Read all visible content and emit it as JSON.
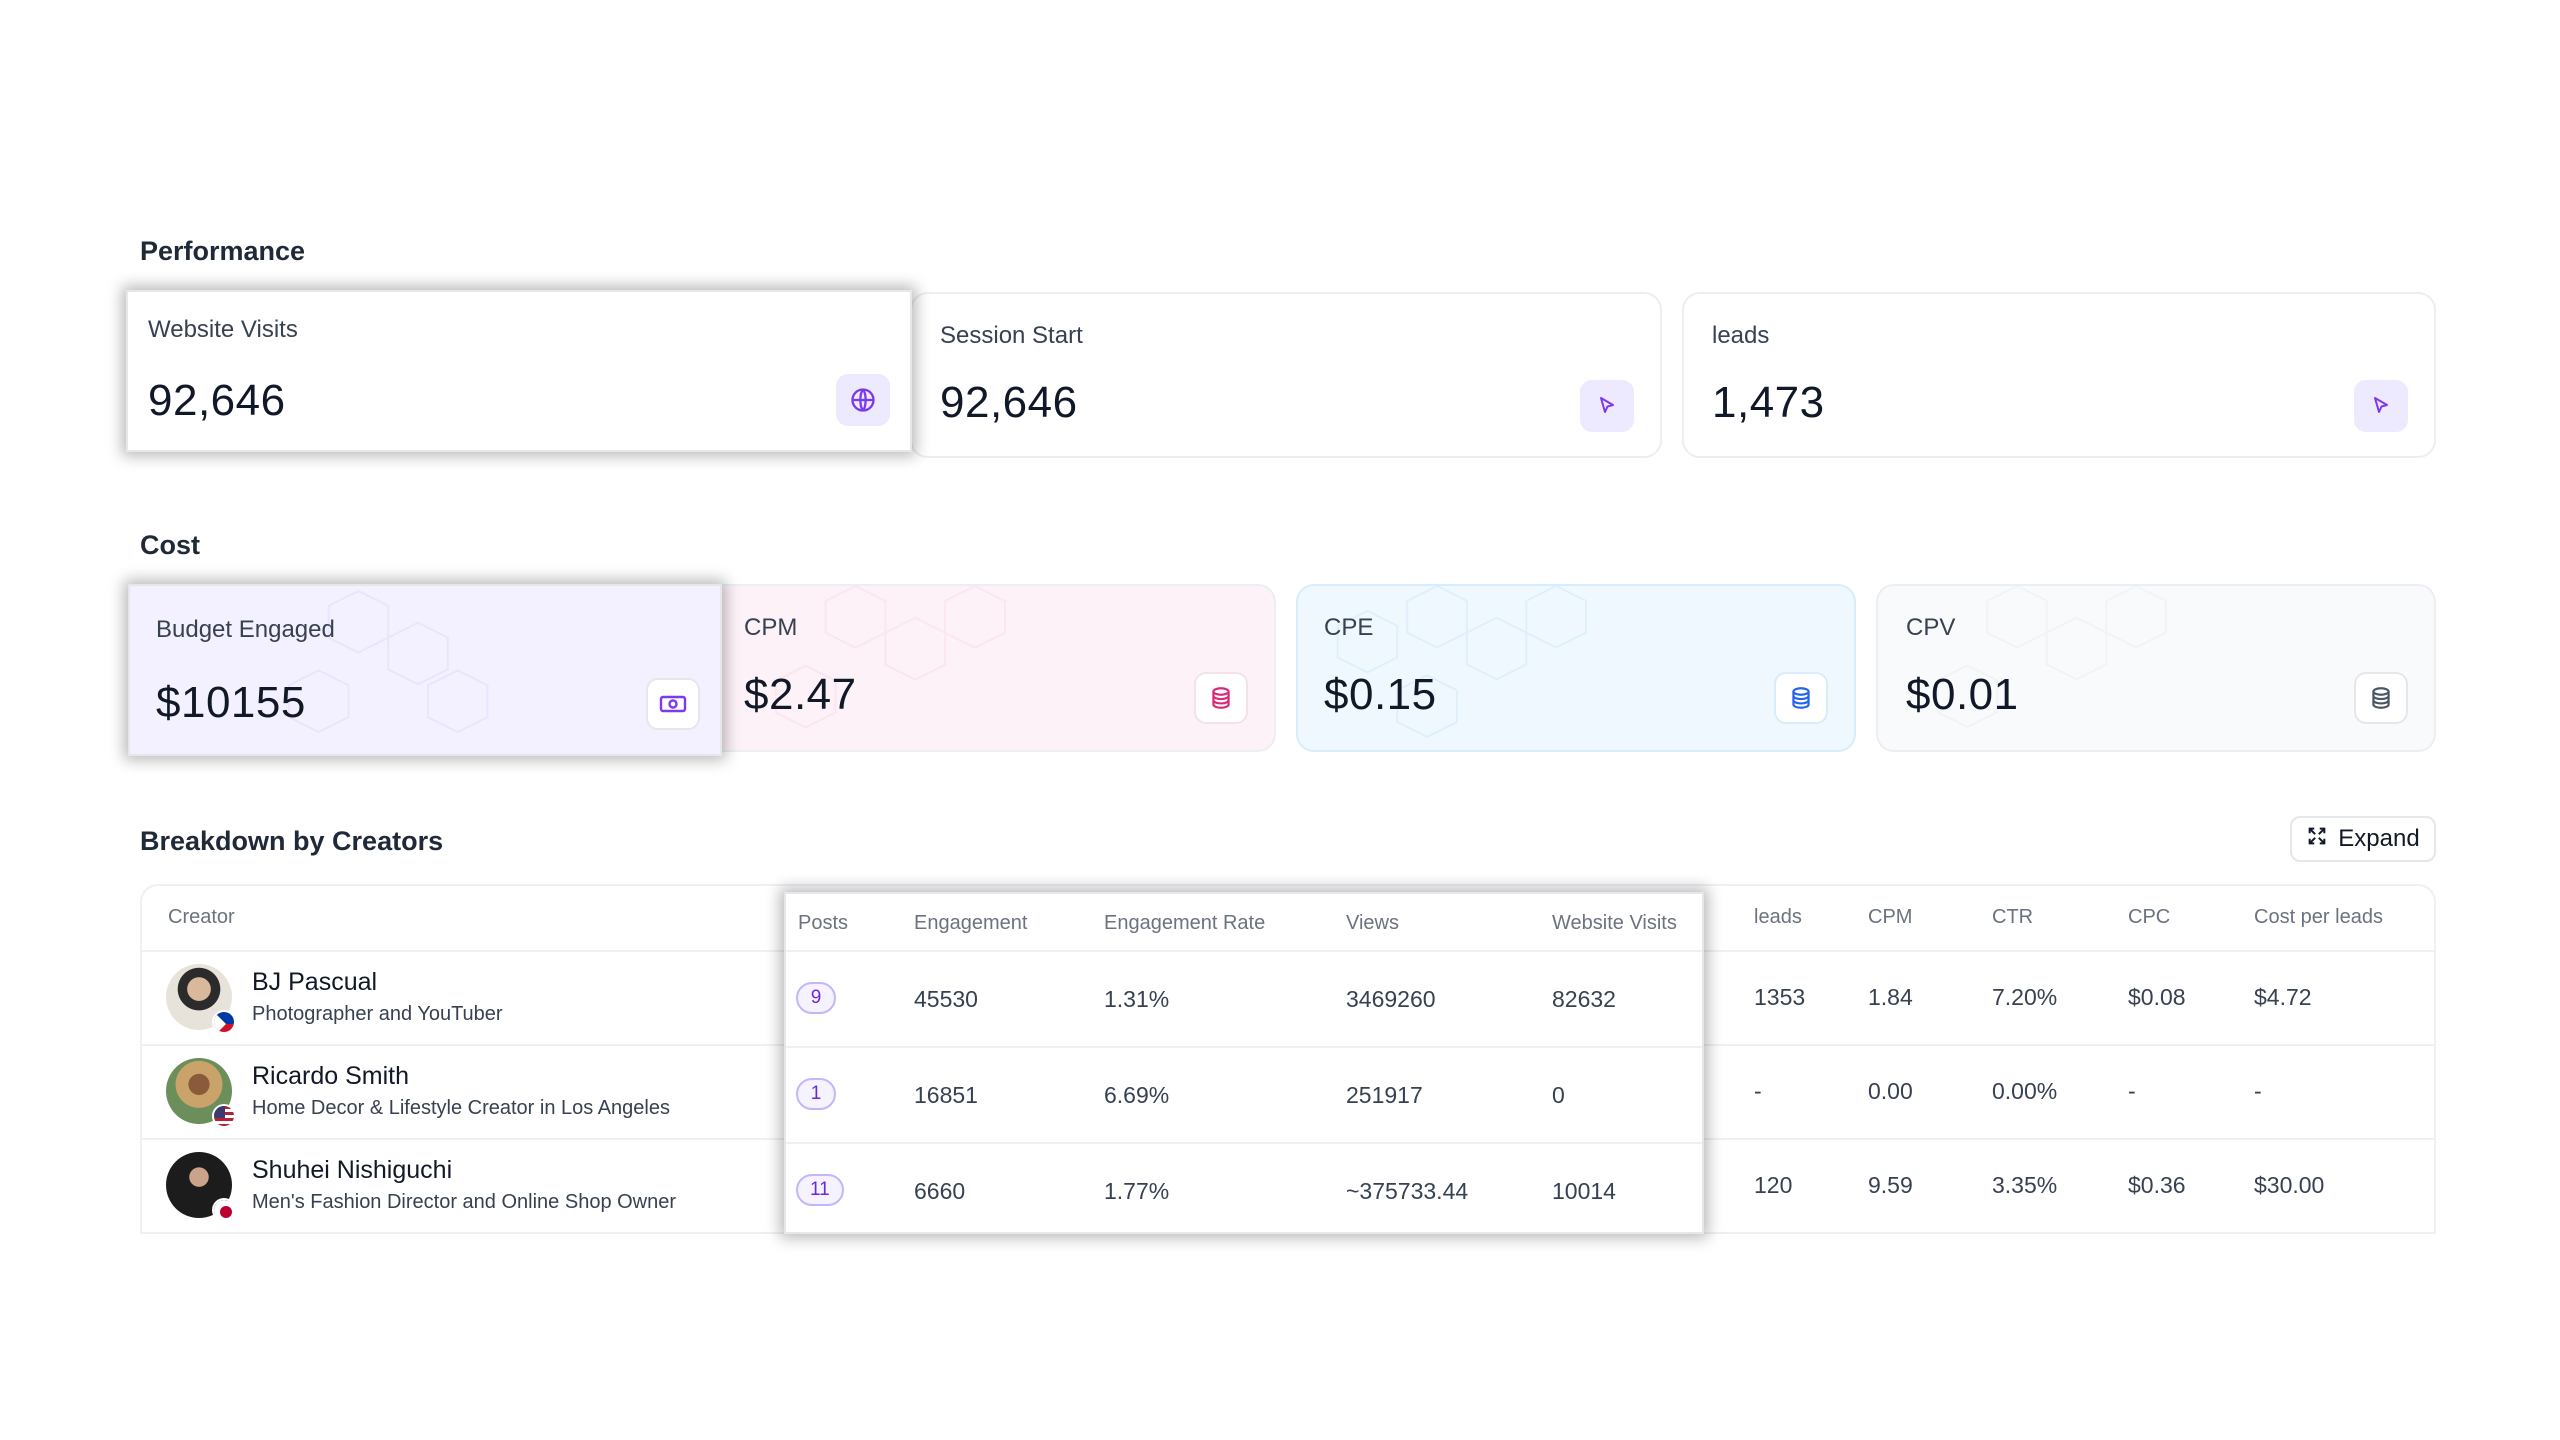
{
  "sections": {
    "performance": "Performance",
    "cost": "Cost",
    "breakdown": "Breakdown by Creators"
  },
  "performance": [
    {
      "label": "Website Visits",
      "value": "92,646",
      "icon": "globe-icon"
    },
    {
      "label": "Session Start",
      "value": "92,646",
      "icon": "cursor-icon"
    },
    {
      "label": "leads",
      "value": "1,473",
      "icon": "cursor-icon"
    }
  ],
  "cost": [
    {
      "label": "Budget Engaged",
      "value": "$10155",
      "icon": "cash-icon",
      "bg": "#f3f0ff"
    },
    {
      "label": "CPM",
      "value": "$2.47",
      "icon": "coins-icon",
      "bg": "#fdf2f8"
    },
    {
      "label": "CPE",
      "value": "$0.15",
      "icon": "coins-icon",
      "bg": "#eff8ff"
    },
    {
      "label": "CPV",
      "value": "$0.01",
      "icon": "coins-icon",
      "bg": "#f9fafb"
    }
  ],
  "table": {
    "expand_label": "Expand",
    "headers": [
      "Creator",
      "Posts",
      "Engagement",
      "Engagement Rate",
      "Views",
      "Website Visits",
      "leads",
      "CPM",
      "CTR",
      "CPC",
      "Cost per leads"
    ],
    "rows": [
      {
        "name": "BJ Pascual",
        "desc": "Photographer and YouTuber",
        "flag": "philippines-flag-icon",
        "posts": "9",
        "engagement": "45530",
        "engagement_rate": "1.31%",
        "views": "3469260",
        "website_visits": "82632",
        "leads": "1353",
        "cpm": "1.84",
        "ctr": "7.20%",
        "cpc": "$0.08",
        "cost_per_leads": "$4.72"
      },
      {
        "name": "Ricardo Smith",
        "desc": "Home Decor & Lifestyle Creator in Los Angeles",
        "flag": "usa-flag-icon",
        "posts": "1",
        "engagement": "16851",
        "engagement_rate": "6.69%",
        "views": "251917",
        "website_visits": "0",
        "leads": "-",
        "cpm": "0.00",
        "ctr": "0.00%",
        "cpc": "-",
        "cost_per_leads": "-"
      },
      {
        "name": "Shuhei Nishiguchi",
        "desc": "Men's Fashion Director and Online Shop Owner",
        "flag": "japan-flag-icon",
        "posts": "11",
        "engagement": "6660",
        "engagement_rate": "1.77%",
        "views": "~375733.44",
        "website_visits": "10014",
        "leads": "120",
        "cpm": "9.59",
        "ctr": "3.35%",
        "cpc": "$0.36",
        "cost_per_leads": "$30.00"
      }
    ]
  },
  "colors": {
    "accent": "#7c3aed",
    "icon_bg": "#ede9fe",
    "pink": "#db2777",
    "blue": "#2563eb",
    "gray": "#4b5563"
  }
}
